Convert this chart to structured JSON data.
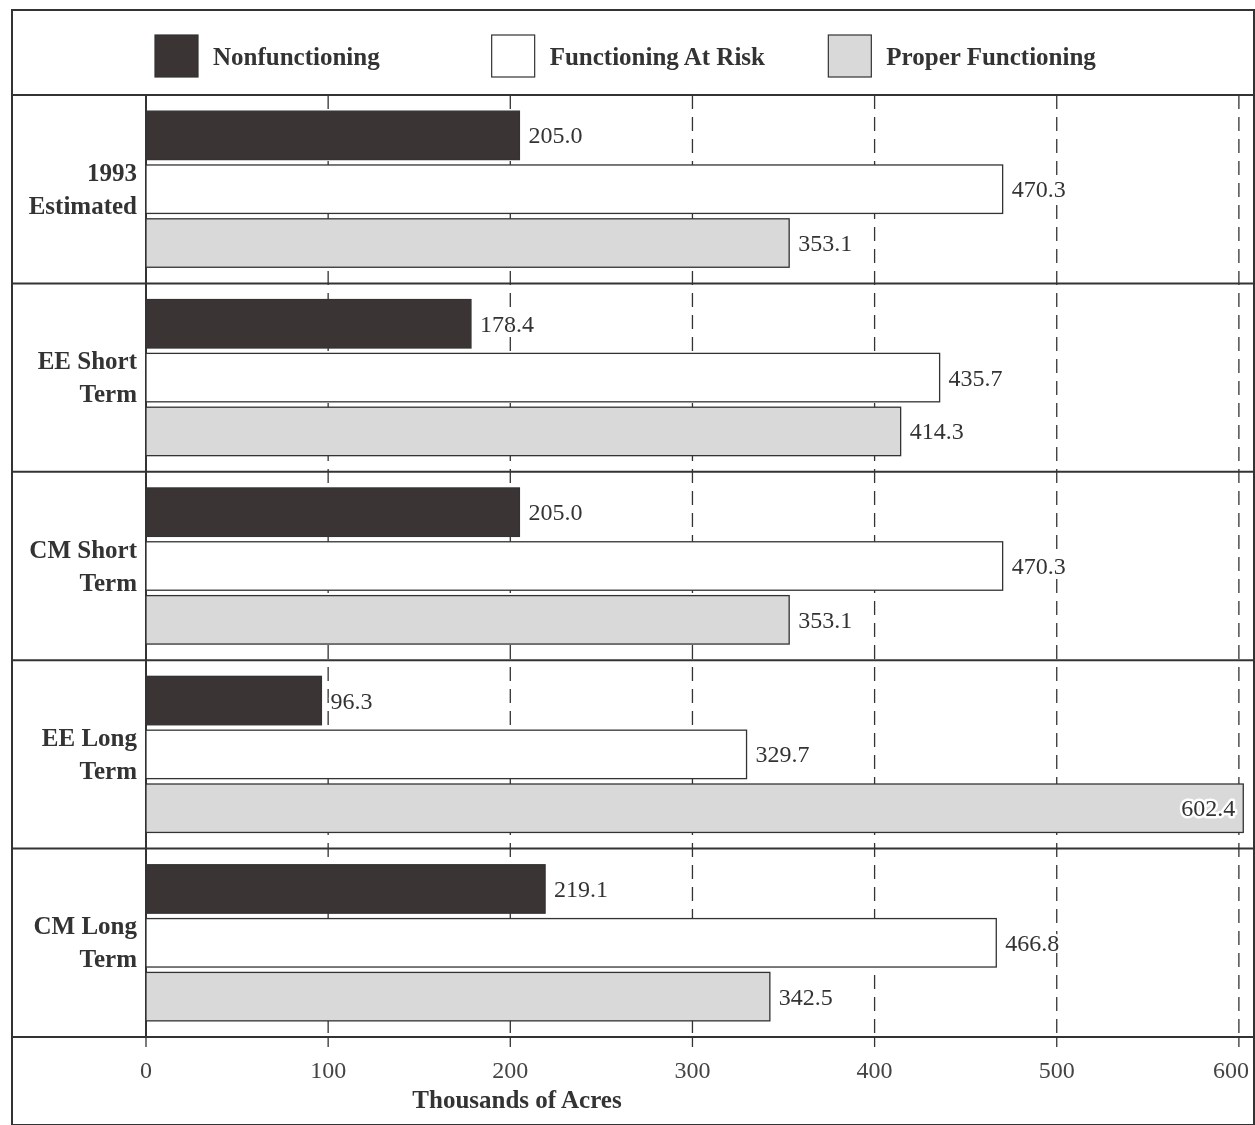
{
  "chart_data": {
    "type": "bar",
    "orientation": "horizontal",
    "xlabel": "Thousands of Acres",
    "categories": [
      "1993 Estimated",
      "EE Short Term",
      "CM Short Term",
      "EE Long Term",
      "CM Long Term"
    ],
    "series": [
      {
        "name": "Nonfunctioning",
        "color": "#3b3434",
        "values": [
          205.0,
          178.4,
          205.0,
          96.3,
          219.1
        ],
        "value_labels": [
          "205.0",
          "178.4",
          "205.0",
          "96.3",
          "219.1"
        ]
      },
      {
        "name": "Functioning At Risk",
        "color": "#ffffff",
        "values": [
          470.3,
          435.7,
          470.3,
          329.7,
          466.8
        ],
        "value_labels": [
          "470.3",
          "435.7",
          "470.3",
          "329.7",
          "466.8"
        ]
      },
      {
        "name": "Proper Functioning",
        "color": "#d9d9d9",
        "values": [
          353.1,
          414.3,
          353.1,
          602.4,
          342.5
        ],
        "value_labels": [
          "353.1",
          "414.3",
          "353.1",
          "602.4",
          "342.5"
        ]
      }
    ],
    "xlim": [
      0,
      605
    ],
    "xticks": [
      0,
      100,
      200,
      300,
      400,
      500,
      600
    ],
    "grid": "x",
    "legend": "top"
  }
}
